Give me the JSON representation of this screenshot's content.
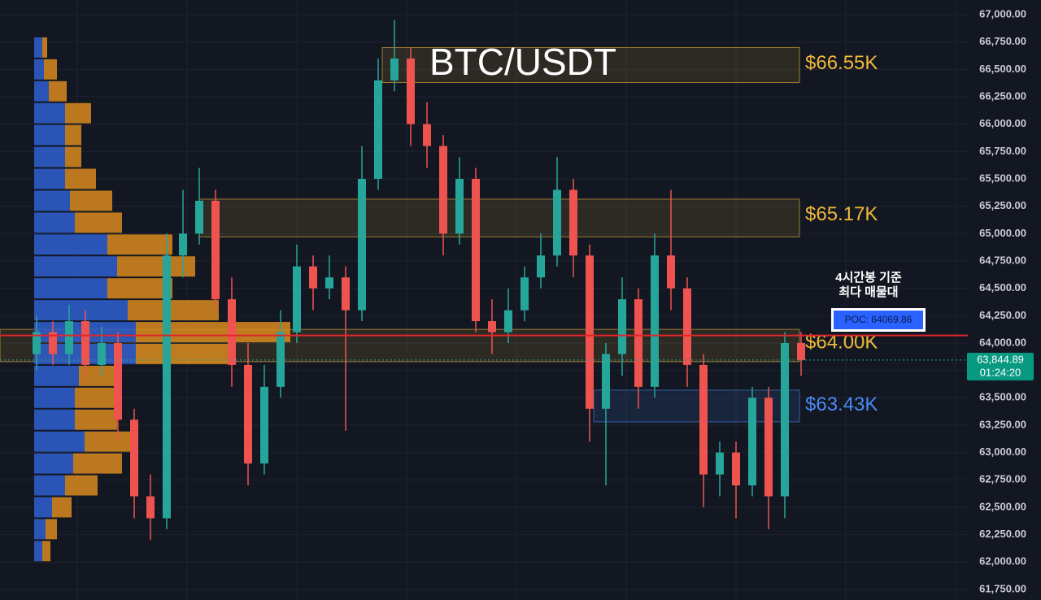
{
  "chart_data": {
    "type": "candlestick",
    "title": "BTC/USDT",
    "up_color": "#26a69a",
    "down_color": "#ef5350",
    "open": [
      63900,
      64100,
      63900,
      64200,
      63800,
      64000,
      63300,
      62600,
      62400,
      64800,
      65000,
      65300,
      64400,
      63800,
      62900,
      63600,
      64100,
      64700,
      64500,
      64600,
      64300,
      65500,
      66400,
      66600,
      66000,
      65800,
      65000,
      65500,
      64200,
      64100,
      64300,
      64600,
      64800,
      65400,
      64800,
      63400,
      63900,
      64400,
      63600,
      64800,
      64500,
      63800,
      62800,
      63000,
      62700,
      63500,
      62600,
      64000
    ],
    "high": [
      64250,
      64200,
      64350,
      64300,
      64150,
      64100,
      63400,
      62800,
      65000,
      65400,
      65600,
      65400,
      64600,
      64000,
      63800,
      64300,
      64900,
      64800,
      64800,
      64700,
      65800,
      66600,
      66950,
      66700,
      66200,
      65900,
      65700,
      65600,
      64400,
      64500,
      64700,
      65000,
      65700,
      65500,
      64900,
      64000,
      64600,
      64500,
      65000,
      65400,
      64600,
      63900,
      63100,
      63100,
      63600,
      63600,
      64100,
      64100
    ],
    "low": [
      63750,
      63800,
      63800,
      63650,
      63700,
      63100,
      62400,
      62200,
      62300,
      64600,
      64900,
      64300,
      63600,
      62700,
      62800,
      63500,
      64000,
      64300,
      64400,
      63200,
      64200,
      65400,
      66300,
      65800,
      65600,
      64800,
      64900,
      64100,
      63900,
      64000,
      64200,
      64500,
      64700,
      64600,
      63100,
      62700,
      63700,
      63400,
      63500,
      64300,
      63600,
      62500,
      62600,
      62400,
      62600,
      62300,
      62400,
      63700
    ],
    "close": [
      64100,
      63900,
      64200,
      63800,
      64000,
      63300,
      62600,
      62400,
      64800,
      65000,
      65300,
      64400,
      63800,
      62900,
      63600,
      64100,
      64700,
      64500,
      64600,
      64300,
      65500,
      66400,
      66600,
      66000,
      65800,
      65000,
      65500,
      64200,
      64100,
      64300,
      64600,
      64800,
      65400,
      64800,
      63400,
      63900,
      64400,
      63600,
      64800,
      64500,
      63800,
      62800,
      63000,
      62700,
      63500,
      62600,
      64000,
      63845
    ],
    "profile": {
      "bins": [
        62000,
        62200,
        62400,
        62600,
        62800,
        63000,
        63200,
        63400,
        63600,
        63800,
        64000,
        64200,
        64400,
        64600,
        64800,
        65000,
        65200,
        65400,
        65600,
        65800,
        66000,
        66200,
        66400,
        66600,
        66800
      ],
      "buy_color": "#2f5fd0",
      "sell_color": "#d98a1e",
      "buy": [
        10,
        14,
        22,
        38,
        48,
        62,
        50,
        50,
        55,
        125,
        125,
        115,
        90,
        102,
        90,
        50,
        44,
        38,
        38,
        38,
        38,
        18,
        12,
        10
      ],
      "sell": [
        10,
        14,
        24,
        40,
        60,
        64,
        52,
        52,
        47,
        115,
        190,
        112,
        80,
        96,
        80,
        58,
        52,
        38,
        20,
        20,
        32,
        22,
        16,
        6
      ]
    },
    "zones": [
      {
        "value": 66550,
        "label": "$66.55K",
        "top": 66700,
        "bottom": 66380,
        "color": "#f0b93a"
      },
      {
        "value": 65170,
        "label": "$65.17K",
        "top": 65315,
        "bottom": 64970,
        "color": "#f0b93a"
      },
      {
        "value": 64000,
        "label": "$64.00K",
        "top": 64125,
        "bottom": 63830,
        "color": "#f0b93a"
      },
      {
        "value": 63430,
        "label": "$63.43K",
        "top": 63570,
        "bottom": 63280,
        "color": "#4a8af4"
      }
    ],
    "poc": {
      "value": 64069.86,
      "label": "POC: 64069.86"
    },
    "annotation": [
      "4시간봉 기준",
      "최다 매물대"
    ],
    "last_price": {
      "value": 63844.89,
      "label": "63,844.89"
    },
    "countdown": "01:24:20",
    "ylim": [
      61653,
      67134
    ],
    "yticks": [
      {
        "value": 61750,
        "label": "61,750.00"
      },
      {
        "value": 62000,
        "label": "62,000.00"
      },
      {
        "value": 62250,
        "label": "62,250.00"
      },
      {
        "value": 62500,
        "label": "62,500.00"
      },
      {
        "value": 62750,
        "label": "62,750.00"
      },
      {
        "value": 63000,
        "label": "63,000.00"
      },
      {
        "value": 63250,
        "label": "63,250.00"
      },
      {
        "value": 63500,
        "label": "63,500.00"
      },
      {
        "value": 63750,
        "label": "63,750.00"
      },
      {
        "value": 64000,
        "label": "64,000.00"
      },
      {
        "value": 64250,
        "label": "64,250.00"
      },
      {
        "value": 64500,
        "label": "64,500.00"
      },
      {
        "value": 64750,
        "label": "64,750.00"
      },
      {
        "value": 65000,
        "label": "65,000.00"
      },
      {
        "value": 65250,
        "label": "65,250.00"
      },
      {
        "value": 65500,
        "label": "65,500.00"
      },
      {
        "value": 65750,
        "label": "65,750.00"
      },
      {
        "value": 66000,
        "label": "66,000.00"
      },
      {
        "value": 66250,
        "label": "66,250.00"
      },
      {
        "value": 66500,
        "label": "66,500.00"
      },
      {
        "value": 66750,
        "label": "66,750.00"
      },
      {
        "value": 67000,
        "label": "67,000.00"
      }
    ],
    "grid": true
  }
}
